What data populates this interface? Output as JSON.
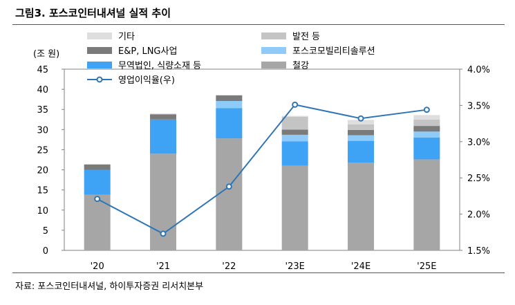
{
  "figure": {
    "title": "그림3.  포스코인터내셔널 실적 추이",
    "source": "자료: 포스코인터내셔널, 하이투자증권 리서치본부"
  },
  "chart_data": {
    "type": "bar",
    "stacked": true,
    "categories": [
      "'20",
      "'21",
      "'22",
      "'23E",
      "'24E",
      "'25E"
    ],
    "left_unit_label": "(조 원)",
    "ylim": [
      0,
      45
    ],
    "yticks": [
      0,
      5,
      10,
      15,
      20,
      25,
      30,
      35,
      40,
      45
    ],
    "y2lim": [
      1.5,
      4.0
    ],
    "y2ticks": [
      "1.5%",
      "2.0%",
      "2.5%",
      "3.0%",
      "3.5%",
      "4.0%"
    ],
    "legend_placement": "top",
    "series": [
      {
        "name": "철강",
        "color": "#a6a6a6",
        "values": [
          13.8,
          24.0,
          27.8,
          21.0,
          21.8,
          22.6
        ]
      },
      {
        "name": "무역법인, 식량소재 등",
        "color": "#3ea2f5",
        "values": [
          6.2,
          8.5,
          7.5,
          6.1,
          5.4,
          5.4
        ]
      },
      {
        "name": "포스코모빌리티솔루션",
        "color": "#8fcbf8",
        "values": [
          0,
          0,
          1.8,
          1.6,
          1.4,
          1.5
        ]
      },
      {
        "name": "E&P, LNG사업",
        "color": "#7a7a7a",
        "values": [
          1.3,
          1.3,
          1.4,
          1.3,
          1.3,
          1.4
        ]
      },
      {
        "name": "발전 등",
        "color": "#c4c4c4",
        "values": [
          0,
          0,
          0,
          3.2,
          1.4,
          1.6
        ]
      },
      {
        "name": "기타",
        "color": "#dedede",
        "values": [
          0.2,
          0.2,
          0.1,
          0.2,
          1.1,
          1.1
        ]
      }
    ],
    "line": {
      "name": "영업이익율(우)",
      "color": "#2e75b6",
      "axis": "right",
      "values": [
        2.21,
        1.73,
        2.38,
        3.51,
        3.32,
        3.44
      ]
    },
    "legend_order": [
      "기타",
      "발전 등",
      "E&P, LNG사업",
      "포스코모빌리티솔루션",
      "무역법인, 식량소재 등",
      "철강",
      "영업이익율(우)"
    ]
  }
}
